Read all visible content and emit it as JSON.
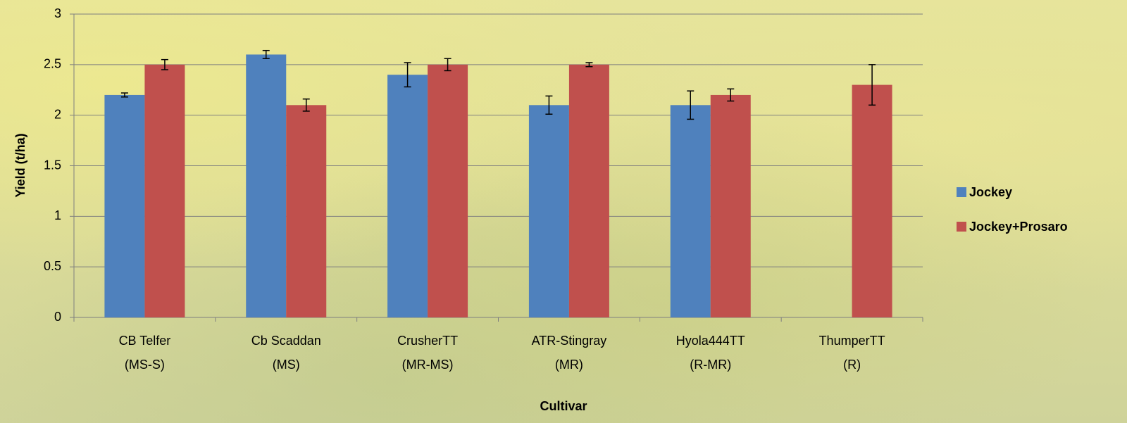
{
  "chart_data": {
    "type": "bar",
    "x_label": "Cultivar",
    "y_label": "Yield (t/ha)",
    "categories": [
      [
        "CB Telfer",
        "(MS-S)"
      ],
      [
        "Cb Scaddan",
        "(MS)"
      ],
      [
        "CrusherTT",
        "(MR-MS)"
      ],
      [
        "ATR-Stingray",
        "(MR)"
      ],
      [
        "Hyola444TT",
        "(R-MR)"
      ],
      [
        "ThumperTT",
        "(R)"
      ]
    ],
    "series": [
      {
        "name": "Jockey",
        "color": "#4f81bd",
        "values": [
          2.2,
          2.6,
          2.4,
          2.1,
          2.1,
          null
        ],
        "errors": [
          0.02,
          0.04,
          0.12,
          0.09,
          0.14,
          null
        ]
      },
      {
        "name": "Jockey+Prosaro",
        "color": "#c0504d",
        "values": [
          2.5,
          2.1,
          2.5,
          2.5,
          2.2,
          2.3
        ],
        "errors": [
          0.05,
          0.06,
          0.06,
          0.02,
          0.06,
          0.2
        ]
      }
    ],
    "ylim": [
      0,
      3
    ],
    "yticks": [
      0,
      0.5,
      1,
      1.5,
      2,
      2.5,
      3
    ],
    "grid": true,
    "legend": "right"
  }
}
